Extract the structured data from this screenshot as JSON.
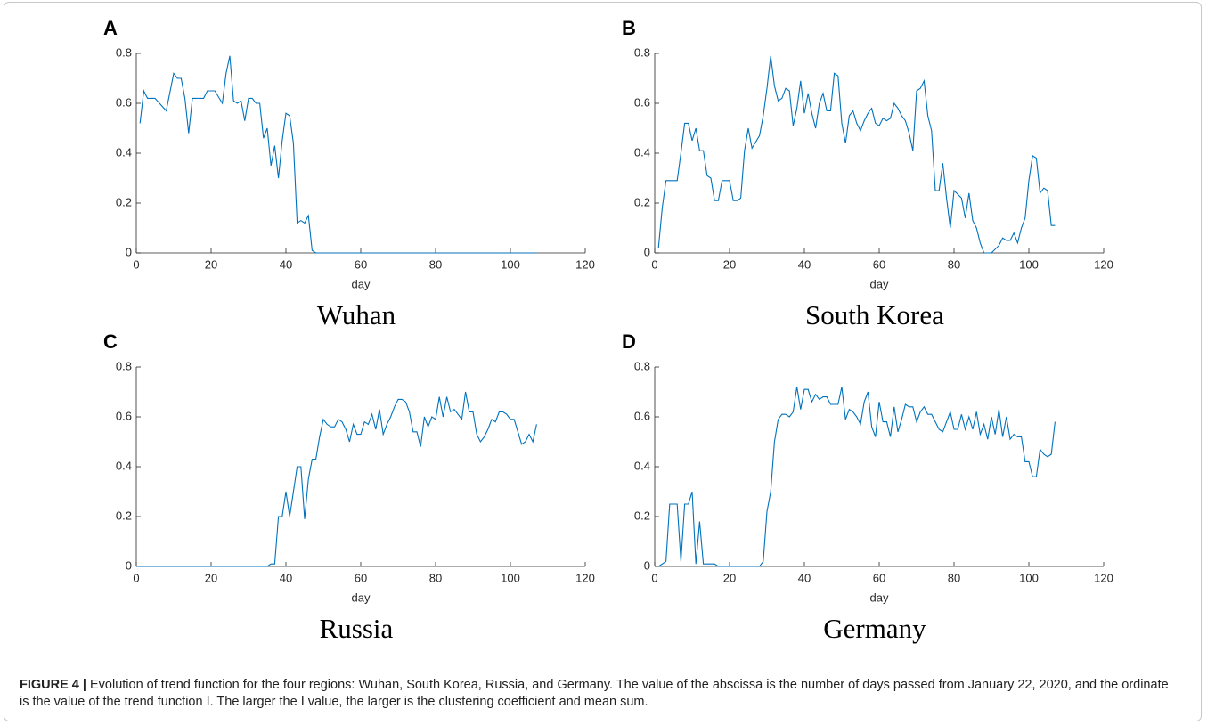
{
  "chart_data": [
    {
      "type": "line",
      "panel": "A",
      "title": "Wuhan",
      "xlabel": "day",
      "xlim": [
        0,
        120
      ],
      "xticks": [
        0,
        20,
        40,
        60,
        80,
        100,
        120
      ],
      "ylim": [
        0,
        0.8
      ],
      "yticks": [
        0,
        0.2,
        0.4,
        0.6,
        0.8
      ],
      "color": "#0072bd",
      "x": [
        1,
        2,
        3,
        5,
        8,
        10,
        11,
        12,
        13,
        14,
        15,
        18,
        19,
        21,
        23,
        24,
        25,
        26,
        27,
        28,
        29,
        30,
        31,
        32,
        33,
        34,
        35,
        36,
        37,
        38,
        39,
        40,
        41,
        42,
        43,
        44,
        45,
        46,
        47,
        48,
        107
      ],
      "values": [
        0.52,
        0.65,
        0.62,
        0.62,
        0.57,
        0.72,
        0.7,
        0.7,
        0.62,
        0.48,
        0.62,
        0.62,
        0.65,
        0.65,
        0.6,
        0.72,
        0.79,
        0.61,
        0.6,
        0.61,
        0.53,
        0.62,
        0.62,
        0.6,
        0.6,
        0.46,
        0.5,
        0.35,
        0.43,
        0.3,
        0.45,
        0.56,
        0.55,
        0.44,
        0.12,
        0.13,
        0.12,
        0.15,
        0.01,
        0,
        0
      ]
    },
    {
      "type": "line",
      "panel": "B",
      "title": "South Korea",
      "xlabel": "day",
      "xlim": [
        0,
        120
      ],
      "xticks": [
        0,
        20,
        40,
        60,
        80,
        100,
        120
      ],
      "ylim": [
        0,
        0.8
      ],
      "yticks": [
        0,
        0.2,
        0.4,
        0.6,
        0.8
      ],
      "color": "#0072bd",
      "x": [
        1,
        2,
        3,
        6,
        7,
        8,
        9,
        10,
        11,
        12,
        13,
        14,
        15,
        16,
        17,
        18,
        20,
        21,
        22,
        23,
        24,
        25,
        26,
        28,
        29,
        30,
        31,
        32,
        33,
        34,
        35,
        36,
        37,
        38,
        39,
        40,
        41,
        42,
        43,
        44,
        45,
        46,
        47,
        48,
        49,
        50,
        51,
        52,
        53,
        54,
        55,
        56,
        57,
        58,
        59,
        60,
        61,
        62,
        63,
        64,
        65,
        66,
        67,
        68,
        69,
        70,
        71,
        72,
        73,
        74,
        75,
        76,
        77,
        78,
        79,
        80,
        82,
        83,
        84,
        85,
        86,
        87,
        88,
        90,
        92,
        93,
        94,
        95,
        96,
        97,
        98,
        99,
        100,
        101,
        102,
        103,
        104,
        105,
        106,
        107
      ],
      "values": [
        0.02,
        0.18,
        0.29,
        0.29,
        0.4,
        0.52,
        0.52,
        0.45,
        0.5,
        0.41,
        0.41,
        0.31,
        0.3,
        0.21,
        0.21,
        0.29,
        0.29,
        0.21,
        0.21,
        0.22,
        0.41,
        0.5,
        0.42,
        0.47,
        0.55,
        0.66,
        0.79,
        0.67,
        0.61,
        0.62,
        0.66,
        0.65,
        0.51,
        0.58,
        0.69,
        0.56,
        0.64,
        0.56,
        0.5,
        0.6,
        0.64,
        0.57,
        0.57,
        0.72,
        0.71,
        0.52,
        0.44,
        0.55,
        0.57,
        0.52,
        0.49,
        0.53,
        0.56,
        0.58,
        0.52,
        0.51,
        0.54,
        0.53,
        0.54,
        0.6,
        0.58,
        0.55,
        0.53,
        0.48,
        0.41,
        0.65,
        0.66,
        0.69,
        0.55,
        0.49,
        0.25,
        0.25,
        0.36,
        0.22,
        0.1,
        0.25,
        0.22,
        0.14,
        0.24,
        0.13,
        0.1,
        0.04,
        0,
        0,
        0.03,
        0.06,
        0.05,
        0.05,
        0.08,
        0.04,
        0.1,
        0.14,
        0.29,
        0.39,
        0.38,
        0.24,
        0.26,
        0.25,
        0.11,
        0.11
      ]
    },
    {
      "type": "line",
      "panel": "C",
      "title": "Russia",
      "xlabel": "day",
      "xlim": [
        0,
        120
      ],
      "xticks": [
        0,
        20,
        40,
        60,
        80,
        100,
        120
      ],
      "ylim": [
        0,
        0.8
      ],
      "yticks": [
        0,
        0.2,
        0.4,
        0.6,
        0.8
      ],
      "color": "#0072bd",
      "x": [
        0,
        35,
        36,
        37,
        38,
        39,
        40,
        41,
        42,
        43,
        44,
        45,
        46,
        47,
        48,
        49,
        50,
        51,
        52,
        53,
        54,
        55,
        56,
        57,
        58,
        59,
        60,
        61,
        62,
        63,
        64,
        65,
        66,
        67,
        68,
        69,
        70,
        71,
        72,
        73,
        74,
        75,
        76,
        77,
        78,
        79,
        80,
        81,
        82,
        83,
        84,
        85,
        86,
        87,
        88,
        89,
        90,
        91,
        92,
        93,
        94,
        95,
        96,
        97,
        98,
        99,
        100,
        101,
        102,
        103,
        104,
        105,
        106,
        107
      ],
      "values": [
        0,
        0,
        0.01,
        0.01,
        0.2,
        0.2,
        0.3,
        0.2,
        0.3,
        0.4,
        0.4,
        0.19,
        0.35,
        0.43,
        0.43,
        0.52,
        0.59,
        0.57,
        0.56,
        0.56,
        0.59,
        0.58,
        0.55,
        0.5,
        0.57,
        0.53,
        0.53,
        0.58,
        0.57,
        0.61,
        0.55,
        0.63,
        0.53,
        0.57,
        0.6,
        0.64,
        0.67,
        0.67,
        0.66,
        0.62,
        0.54,
        0.54,
        0.48,
        0.6,
        0.56,
        0.6,
        0.59,
        0.68,
        0.6,
        0.68,
        0.62,
        0.63,
        0.61,
        0.59,
        0.7,
        0.62,
        0.62,
        0.53,
        0.5,
        0.52,
        0.55,
        0.59,
        0.58,
        0.62,
        0.62,
        0.61,
        0.59,
        0.59,
        0.54,
        0.49,
        0.5,
        0.53,
        0.5,
        0.57
      ]
    },
    {
      "type": "line",
      "panel": "D",
      "title": "Germany",
      "xlabel": "day",
      "xlim": [
        0,
        120
      ],
      "xticks": [
        0,
        20,
        40,
        60,
        80,
        100,
        120
      ],
      "ylim": [
        0,
        0.8
      ],
      "yticks": [
        0,
        0.2,
        0.4,
        0.6,
        0.8
      ],
      "color": "#0072bd",
      "x": [
        1,
        3,
        4,
        6,
        7,
        8,
        9,
        10,
        11,
        12,
        13,
        16,
        17,
        28,
        29,
        30,
        31,
        32,
        33,
        34,
        35,
        36,
        37,
        38,
        39,
        40,
        41,
        42,
        43,
        44,
        45,
        46,
        47,
        48,
        49,
        50,
        51,
        52,
        53,
        54,
        55,
        56,
        57,
        58,
        59,
        60,
        61,
        62,
        63,
        64,
        65,
        66,
        67,
        68,
        69,
        70,
        71,
        72,
        73,
        74,
        75,
        76,
        77,
        78,
        79,
        80,
        81,
        82,
        83,
        84,
        85,
        86,
        87,
        88,
        89,
        90,
        91,
        92,
        93,
        94,
        95,
        96,
        97,
        98,
        99,
        100,
        101,
        102,
        103,
        104,
        105,
        106,
        107
      ],
      "values": [
        0,
        0.02,
        0.25,
        0.25,
        0.02,
        0.25,
        0.25,
        0.3,
        0.01,
        0.18,
        0.01,
        0.01,
        0,
        0,
        0.02,
        0.22,
        0.3,
        0.5,
        0.59,
        0.61,
        0.61,
        0.6,
        0.62,
        0.72,
        0.63,
        0.71,
        0.71,
        0.66,
        0.69,
        0.67,
        0.68,
        0.68,
        0.65,
        0.65,
        0.65,
        0.72,
        0.59,
        0.63,
        0.62,
        0.6,
        0.57,
        0.66,
        0.7,
        0.56,
        0.52,
        0.66,
        0.58,
        0.58,
        0.52,
        0.64,
        0.54,
        0.59,
        0.65,
        0.64,
        0.64,
        0.58,
        0.62,
        0.64,
        0.61,
        0.61,
        0.58,
        0.55,
        0.54,
        0.58,
        0.62,
        0.55,
        0.55,
        0.61,
        0.55,
        0.6,
        0.55,
        0.62,
        0.53,
        0.57,
        0.51,
        0.6,
        0.53,
        0.63,
        0.52,
        0.6,
        0.51,
        0.53,
        0.52,
        0.52,
        0.42,
        0.42,
        0.36,
        0.36,
        0.47,
        0.45,
        0.44,
        0.45,
        0.58
      ]
    }
  ],
  "caption": {
    "label": "FIGURE 4 |",
    "text": "Evolution of trend function for the four regions: Wuhan, South Korea, Russia, and Germany. The value of the abscissa is the number of days passed from January 22, 2020, and the ordinate is the value of the trend function I. The larger the I value, the larger is the clustering coefficient and mean sum."
  }
}
